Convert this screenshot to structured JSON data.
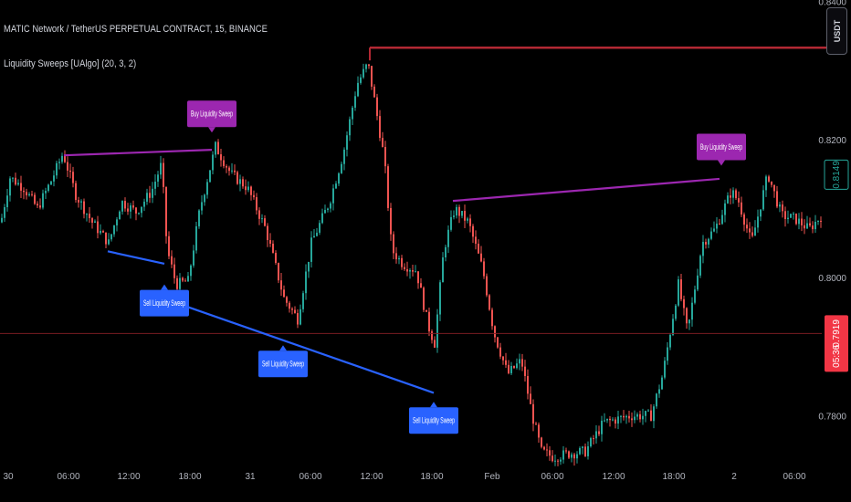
{
  "header": {
    "symbol_line": "MATIC Network / TetherUS PERPETUAL CONTRACT, 15, BINANCE",
    "indicator_line": "Liquidity Sweeps [UAlgo] (20, 3, 2)"
  },
  "currency_button": "USDT",
  "colors": {
    "up": "#26a69a",
    "down": "#ef5350",
    "buy_sweep": "#9c27b0",
    "sell_sweep": "#2962ff",
    "resistance": "#b22833",
    "current_price_line": "#7a1c22",
    "price_tag_green": "#26a69a",
    "price_tag_red": "#f23645"
  },
  "chart_data": {
    "type": "candlestick",
    "x_ticks": [
      "30",
      "06:00",
      "12:00",
      "18:00",
      "31",
      "06:00",
      "12:00",
      "18:00",
      "Feb",
      "06:00",
      "12:00",
      "18:00",
      "2",
      "06:00"
    ],
    "y_ticks": [
      0.78,
      0.8,
      0.82,
      0.84
    ],
    "y_tick_labels": [
      "0.7800",
      "0.8000",
      "0.8200",
      "0.8400"
    ],
    "ylim": [
      0.7741,
      0.8402
    ],
    "price_path": [
      [
        0,
        0.808
      ],
      [
        10,
        0.8145
      ],
      [
        25,
        0.813
      ],
      [
        40,
        0.81
      ],
      [
        55,
        0.814
      ],
      [
        68,
        0.818
      ],
      [
        82,
        0.812
      ],
      [
        100,
        0.808
      ],
      [
        118,
        0.805
      ],
      [
        132,
        0.811
      ],
      [
        148,
        0.8095
      ],
      [
        165,
        0.8125
      ],
      [
        176,
        0.8165
      ],
      [
        182,
        0.804
      ],
      [
        192,
        0.799
      ],
      [
        205,
        0.7995
      ],
      [
        218,
        0.81
      ],
      [
        235,
        0.819
      ],
      [
        252,
        0.815
      ],
      [
        270,
        0.813
      ],
      [
        290,
        0.807
      ],
      [
        310,
        0.797
      ],
      [
        325,
        0.794
      ],
      [
        340,
        0.805
      ],
      [
        360,
        0.811
      ],
      [
        375,
        0.818
      ],
      [
        390,
        0.828
      ],
      [
        402,
        0.831
      ],
      [
        410,
        0.825
      ],
      [
        420,
        0.817
      ],
      [
        428,
        0.804
      ],
      [
        440,
        0.802
      ],
      [
        455,
        0.801
      ],
      [
        468,
        0.793
      ],
      [
        475,
        0.7905
      ],
      [
        485,
        0.804
      ],
      [
        497,
        0.81
      ],
      [
        512,
        0.808
      ],
      [
        528,
        0.801
      ],
      [
        540,
        0.792
      ],
      [
        555,
        0.786
      ],
      [
        570,
        0.788
      ],
      [
        582,
        0.78
      ],
      [
        592,
        0.7748
      ],
      [
        605,
        0.774
      ],
      [
        622,
        0.7745
      ],
      [
        640,
        0.7748
      ],
      [
        660,
        0.779
      ],
      [
        690,
        0.78
      ],
      [
        712,
        0.78
      ],
      [
        725,
        0.786
      ],
      [
        742,
        0.799
      ],
      [
        752,
        0.792
      ],
      [
        768,
        0.805
      ],
      [
        782,
        0.807
      ],
      [
        800,
        0.8125
      ],
      [
        808,
        0.811
      ],
      [
        822,
        0.805
      ],
      [
        840,
        0.815
      ],
      [
        855,
        0.809
      ],
      [
        870,
        0.8085
      ],
      [
        885,
        0.807
      ],
      [
        899,
        0.809
      ]
    ],
    "last_price": "0.8149",
    "current_price": "0.7919",
    "countdown": "05:36",
    "resistance_level": 0.8333,
    "current_price_level": 0.7919,
    "sweep_lines": [
      {
        "kind": "buy",
        "x1_index": 70,
        "y1": 0.8177,
        "x2_index": 232,
        "y2": 0.8185
      },
      {
        "kind": "buy",
        "x1_index": 496,
        "y1": 0.8111,
        "x2_index": 788,
        "y2": 0.8143
      },
      {
        "kind": "sell",
        "x1_index": 118,
        "y1": 0.8038,
        "x2_index": 180,
        "y2": 0.802
      },
      {
        "kind": "sell",
        "x1_index": 200,
        "y1": 0.796,
        "x2_index": 475,
        "y2": 0.7833
      }
    ],
    "resistance_x_start_index": 405,
    "annotations": [
      {
        "text": "Buy Liquidity Sweep",
        "kind": "buy",
        "x_index": 232,
        "y": 0.821
      },
      {
        "text": "Buy Liquidity Sweep",
        "kind": "buy",
        "x_index": 790,
        "y": 0.8162
      },
      {
        "text": "Sell Liquidity Sweep",
        "kind": "sell",
        "x_index": 180,
        "y": 0.799
      },
      {
        "text": "Sell Liquidity Sweep",
        "kind": "sell",
        "x_index": 310,
        "y": 0.7902
      },
      {
        "text": "Sell Liquidity Sweep",
        "kind": "sell",
        "x_index": 475,
        "y": 0.782
      }
    ]
  }
}
